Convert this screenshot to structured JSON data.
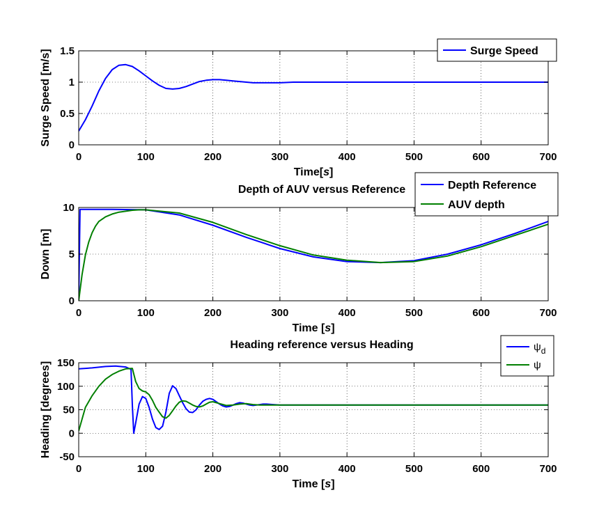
{
  "colors": {
    "blue": "#0000ff",
    "green": "#007f00",
    "grid": "#000000"
  },
  "chart_data": [
    {
      "type": "line",
      "title": "",
      "xlabel": "Time[",
      "xlabel_unit": "s",
      "xlabel_end": "]",
      "ylabel": "Surge Speed [m/s]",
      "xlim": [
        0,
        700
      ],
      "ylim": [
        0,
        1.5
      ],
      "xticks": [
        0,
        100,
        200,
        300,
        400,
        500,
        600,
        700
      ],
      "yticks": [
        0,
        0.5,
        1,
        1.5
      ],
      "ytick_labels": [
        "0",
        "0.5",
        "1",
        "1.5"
      ],
      "grid": true,
      "legend_position": "top-right",
      "series": [
        {
          "name": "Surge Speed",
          "color": "#0000ff",
          "x": [
            0,
            10,
            20,
            30,
            40,
            50,
            60,
            70,
            80,
            90,
            100,
            110,
            120,
            130,
            140,
            150,
            160,
            170,
            180,
            190,
            200,
            210,
            220,
            230,
            240,
            250,
            260,
            270,
            280,
            290,
            300,
            320,
            340,
            360,
            380,
            400,
            450,
            500,
            600,
            700
          ],
          "y": [
            0.22,
            0.4,
            0.62,
            0.86,
            1.06,
            1.2,
            1.27,
            1.28,
            1.25,
            1.18,
            1.1,
            1.02,
            0.95,
            0.9,
            0.89,
            0.9,
            0.93,
            0.97,
            1.01,
            1.03,
            1.04,
            1.04,
            1.03,
            1.02,
            1.01,
            1.0,
            0.99,
            0.99,
            0.99,
            0.99,
            0.99,
            1.0,
            1.0,
            1.0,
            1.0,
            1.0,
            1.0,
            1.0,
            1.0,
            1.0
          ]
        }
      ]
    },
    {
      "type": "line",
      "title": "Depth of AUV versus Reference",
      "xlabel": "Time [",
      "xlabel_unit": "s",
      "xlabel_end": "]",
      "ylabel": "Down [m]",
      "xlim": [
        0,
        700
      ],
      "ylim": [
        0,
        10
      ],
      "xticks": [
        0,
        100,
        200,
        300,
        400,
        500,
        600,
        700
      ],
      "yticks": [
        0,
        5,
        10
      ],
      "ytick_labels": [
        "0",
        "5",
        "10"
      ],
      "grid": true,
      "legend_position": "top-right",
      "series": [
        {
          "name": "Depth Reference",
          "color": "#0000ff",
          "x": [
            0,
            2,
            50,
            100,
            150,
            200,
            250,
            300,
            350,
            400,
            450,
            500,
            550,
            600,
            650,
            700
          ],
          "y": [
            0,
            9.8,
            9.8,
            9.75,
            9.2,
            8.1,
            6.8,
            5.6,
            4.7,
            4.2,
            4.1,
            4.3,
            5.0,
            6.0,
            7.2,
            8.5
          ]
        },
        {
          "name": "AUV depth",
          "color": "#007f00",
          "x": [
            0,
            5,
            10,
            15,
            20,
            25,
            30,
            40,
            50,
            60,
            70,
            80,
            90,
            100,
            150,
            200,
            250,
            300,
            350,
            400,
            450,
            500,
            550,
            600,
            650,
            700
          ],
          "y": [
            0,
            2.8,
            4.9,
            6.3,
            7.3,
            8.0,
            8.5,
            9.0,
            9.3,
            9.5,
            9.6,
            9.7,
            9.75,
            9.75,
            9.4,
            8.4,
            7.1,
            5.9,
            4.9,
            4.35,
            4.1,
            4.2,
            4.8,
            5.8,
            7.0,
            8.2
          ]
        }
      ]
    },
    {
      "type": "line",
      "title": "Heading reference versus Heading",
      "xlabel": "Time [",
      "xlabel_unit": "s",
      "xlabel_end": "]",
      "ylabel": "Heading [degrees]",
      "xlim": [
        0,
        700
      ],
      "ylim": [
        -50,
        150
      ],
      "xticks": [
        0,
        100,
        200,
        300,
        400,
        500,
        600,
        700
      ],
      "yticks": [
        -50,
        0,
        50,
        100,
        150
      ],
      "ytick_labels": [
        "-50",
        "0",
        "50",
        "100",
        "150"
      ],
      "grid": true,
      "legend_position": "top-right",
      "series": [
        {
          "name": "ψd",
          "name_base": "ψ",
          "name_sub": "d",
          "color": "#0000ff",
          "x": [
            0,
            20,
            40,
            55,
            70,
            78,
            80,
            82,
            85,
            90,
            95,
            100,
            105,
            110,
            115,
            120,
            125,
            130,
            135,
            140,
            145,
            150,
            155,
            160,
            165,
            170,
            175,
            180,
            185,
            190,
            195,
            200,
            205,
            210,
            215,
            220,
            225,
            230,
            235,
            240,
            245,
            250,
            255,
            260,
            265,
            270,
            275,
            280,
            290,
            300,
            320,
            350,
            400,
            500,
            600,
            700
          ],
          "y": [
            137,
            139,
            142,
            143,
            141,
            136,
            60,
            0,
            22,
            62,
            78,
            74,
            55,
            30,
            12,
            8,
            15,
            45,
            85,
            101,
            95,
            80,
            65,
            52,
            45,
            44,
            50,
            60,
            68,
            72,
            74,
            72,
            67,
            62,
            58,
            56,
            57,
            60,
            63,
            65,
            64,
            62,
            60,
            59,
            60,
            61,
            62,
            62,
            61,
            60,
            60,
            60,
            60,
            60,
            60,
            60
          ]
        },
        {
          "name": "ψ",
          "name_base": "ψ",
          "name_sub": "",
          "color": "#007f00",
          "x": [
            0,
            5,
            10,
            20,
            30,
            40,
            50,
            60,
            70,
            80,
            85,
            90,
            95,
            100,
            105,
            110,
            115,
            120,
            125,
            130,
            135,
            140,
            145,
            150,
            155,
            160,
            165,
            170,
            175,
            180,
            185,
            190,
            195,
            200,
            210,
            220,
            230,
            240,
            250,
            260,
            270,
            280,
            300,
            350,
            400,
            500,
            600,
            700
          ],
          "y": [
            5,
            30,
            55,
            80,
            100,
            115,
            125,
            132,
            137,
            138,
            110,
            95,
            90,
            88,
            82,
            70,
            55,
            45,
            35,
            32,
            38,
            48,
            58,
            66,
            69,
            68,
            64,
            60,
            57,
            56,
            58,
            62,
            66,
            67,
            63,
            59,
            60,
            62,
            63,
            61,
            60,
            60,
            60,
            60,
            60,
            60,
            60,
            60
          ]
        }
      ]
    }
  ]
}
